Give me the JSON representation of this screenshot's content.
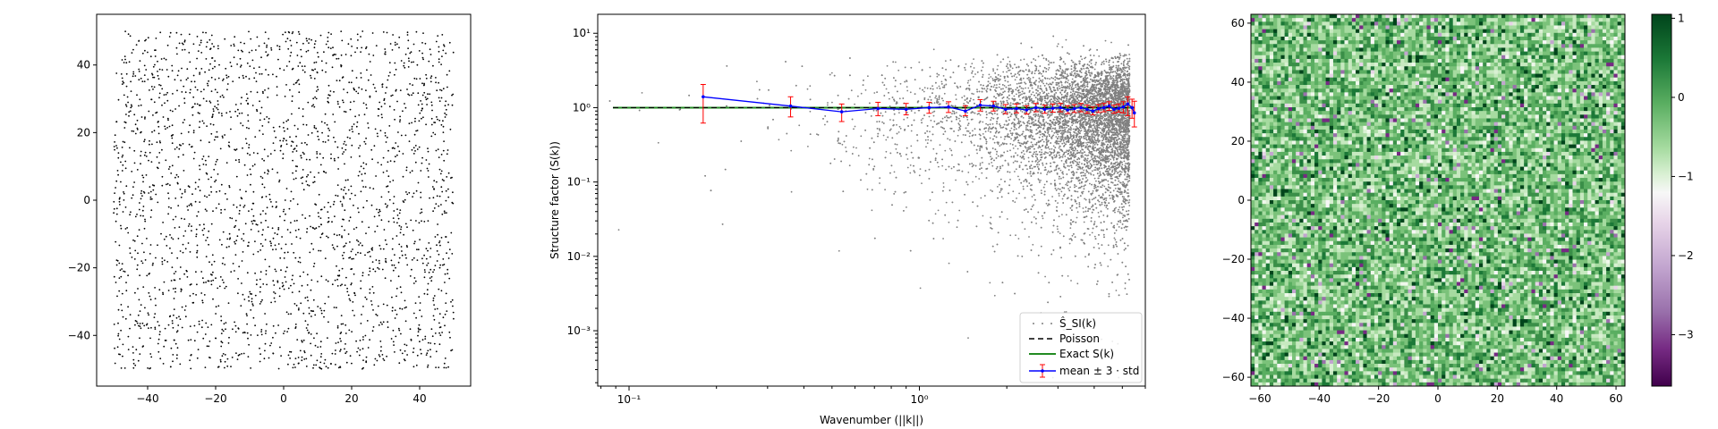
{
  "chart_data": [
    {
      "type": "scatter",
      "title": "",
      "xlabel": "",
      "ylabel": "",
      "xlim": [
        -55,
        55
      ],
      "ylim": [
        -55,
        55
      ],
      "xticks": [
        -40,
        -20,
        0,
        20,
        40
      ],
      "yticks": [
        -40,
        -20,
        0,
        20,
        40
      ],
      "xtick_labels": [
        "−40",
        "−20",
        "0",
        "20",
        "40"
      ],
      "ytick_labels": [
        "−40",
        "−20",
        "0",
        "20",
        "40"
      ],
      "point_color": "#000000",
      "n_points": 2500,
      "point_region": [
        -50,
        50
      ]
    },
    {
      "type": "scatter",
      "title": "",
      "xlabel": "Wavenumber (||k||)",
      "ylabel": "Structure factor (S(k))",
      "xscale": "log",
      "yscale": "log",
      "xlim": [
        0.078,
        6.0
      ],
      "ylim": [
        0.00018,
        18
      ],
      "xticks": [
        0.1,
        1
      ],
      "xtick_labels": [
        "10⁻¹",
        "10⁰"
      ],
      "yticks": [
        0.001,
        0.01,
        0.1,
        1,
        10
      ],
      "ytick_labels": [
        "10⁻³",
        "10⁻²",
        "10⁻¹",
        "10⁰",
        "10¹"
      ],
      "grid": false,
      "legend_position": "lower-right",
      "legend": [
        "Ŝ_SI(k)",
        "Poisson",
        "Exact S(k)",
        "mean ± 3 · std"
      ],
      "series": [
        {
          "name": "Ŝ_SI(k)",
          "style": "scatter",
          "color": "#808080"
        },
        {
          "name": "Poisson",
          "style": "dashed-line",
          "color": "#000000",
          "x": [
            0.088,
            5.5
          ],
          "y": [
            1,
            1
          ]
        },
        {
          "name": "Exact S(k)",
          "style": "line",
          "color": "#228B22",
          "x": [
            0.088,
            5.5
          ],
          "y": [
            1,
            1
          ]
        },
        {
          "name": "mean ± 3 · std",
          "style": "errorbar",
          "color": "#0000ff",
          "error_color": "#ff0000",
          "x": [
            0.18,
            0.36,
            0.54,
            0.72,
            0.9,
            1.08,
            1.26,
            1.44,
            1.62,
            1.8,
            1.98,
            2.16,
            2.34,
            2.52,
            2.7,
            2.88,
            3.06,
            3.24,
            3.42,
            3.6,
            3.78,
            3.96,
            4.14,
            4.32,
            4.5,
            4.68,
            4.86,
            5.04,
            5.22,
            5.4,
            5.5
          ],
          "y": [
            1.4,
            1.05,
            0.88,
            0.97,
            0.95,
            1.0,
            1.02,
            0.9,
            1.08,
            1.05,
            0.95,
            0.97,
            0.93,
            1.0,
            0.95,
            0.98,
            1.0,
            0.93,
            0.97,
            1.0,
            0.95,
            0.9,
            0.97,
            1.0,
            1.05,
            0.95,
            0.98,
            1.02,
            1.12,
            1.0,
            0.85
          ],
          "err_low": [
            0.62,
            0.75,
            0.65,
            0.78,
            0.8,
            0.84,
            0.86,
            0.78,
            0.9,
            0.9,
            0.83,
            0.85,
            0.82,
            0.88,
            0.84,
            0.87,
            0.88,
            0.83,
            0.86,
            0.88,
            0.84,
            0.8,
            0.86,
            0.88,
            0.92,
            0.84,
            0.87,
            0.85,
            0.78,
            0.72,
            0.55
          ],
          "err_high": [
            2.05,
            1.4,
            1.12,
            1.18,
            1.14,
            1.18,
            1.2,
            1.06,
            1.28,
            1.22,
            1.1,
            1.12,
            1.06,
            1.14,
            1.08,
            1.12,
            1.14,
            1.06,
            1.1,
            1.14,
            1.08,
            1.02,
            1.1,
            1.14,
            1.2,
            1.08,
            1.12,
            1.2,
            1.4,
            1.3,
            1.22
          ]
        }
      ]
    },
    {
      "type": "heatmap",
      "title": "",
      "xlabel": "",
      "ylabel": "",
      "xlim": [
        -63,
        63
      ],
      "ylim": [
        -63,
        63
      ],
      "xticks": [
        -60,
        -40,
        -20,
        0,
        20,
        40,
        60
      ],
      "xtick_labels": [
        "−60",
        "−40",
        "−20",
        "0",
        "20",
        "40",
        "60"
      ],
      "yticks": [
        -60,
        -40,
        -20,
        0,
        20,
        40,
        60
      ],
      "ytick_labels": [
        "−60",
        "−40",
        "−20",
        "0",
        "20",
        "40",
        "60"
      ],
      "grid_size": 100,
      "colormap": "PRGn",
      "colorbar": {
        "range": [
          -3.65,
          1.05
        ],
        "ticks": [
          1,
          0,
          -1,
          -2,
          -3
        ],
        "tick_labels": [
          "1",
          "0",
          "−1",
          "−2",
          "−3"
        ]
      }
    }
  ]
}
